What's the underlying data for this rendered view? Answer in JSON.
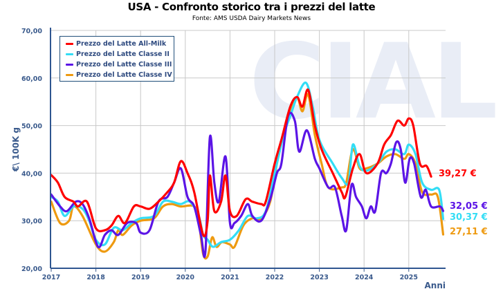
{
  "watermark": "CIAL",
  "chart_data": {
    "type": "line",
    "title": "USA - Confronto storico tra i prezzi del latte",
    "subtitle": "Fonte: AMS USDA Dairy Markets News",
    "xlabel": "Anni",
    "ylabel": "€\\ 100K g",
    "ylim": [
      20,
      70
    ],
    "xlim": [
      2017,
      2025.85
    ],
    "y_ticks": [
      "20,00",
      "30,00",
      "40,00",
      "50,00",
      "60,00",
      "70,00"
    ],
    "x_ticks": [
      "2017",
      "2018",
      "2019",
      "2020",
      "2021",
      "2022",
      "2023",
      "2024",
      "2025"
    ],
    "grid": true,
    "legend_position": "top-left",
    "series": [
      {
        "name": "Prezzo del Latte All-Milk",
        "color": "#ff0000",
        "end_label": "39,27 €",
        "points": [
          [
            2017.0,
            39.6
          ],
          [
            2017.15,
            38
          ],
          [
            2017.3,
            35
          ],
          [
            2017.5,
            34
          ],
          [
            2017.6,
            33
          ],
          [
            2017.8,
            34
          ],
          [
            2018.0,
            28.4
          ],
          [
            2018.2,
            28
          ],
          [
            2018.35,
            29
          ],
          [
            2018.5,
            31
          ],
          [
            2018.65,
            29.5
          ],
          [
            2018.85,
            33
          ],
          [
            2019.0,
            33
          ],
          [
            2019.2,
            32.5
          ],
          [
            2019.4,
            34
          ],
          [
            2019.6,
            36
          ],
          [
            2019.75,
            38
          ],
          [
            2019.9,
            42.5
          ],
          [
            2020.05,
            40
          ],
          [
            2020.2,
            36
          ],
          [
            2020.4,
            27
          ],
          [
            2020.5,
            30
          ],
          [
            2020.55,
            39.5
          ],
          [
            2020.65,
            32
          ],
          [
            2020.8,
            34
          ],
          [
            2020.9,
            39.5
          ],
          [
            2021.0,
            32
          ],
          [
            2021.15,
            31
          ],
          [
            2021.35,
            34.5
          ],
          [
            2021.5,
            34
          ],
          [
            2021.7,
            33.5
          ],
          [
            2021.8,
            34
          ],
          [
            2022.0,
            42
          ],
          [
            2022.15,
            47
          ],
          [
            2022.35,
            54
          ],
          [
            2022.5,
            56
          ],
          [
            2022.62,
            54
          ],
          [
            2022.75,
            57.5
          ],
          [
            2022.9,
            50
          ],
          [
            2023.05,
            45
          ],
          [
            2023.3,
            40
          ],
          [
            2023.5,
            36
          ],
          [
            2023.58,
            35
          ],
          [
            2023.75,
            41
          ],
          [
            2023.9,
            44
          ],
          [
            2024.05,
            40
          ],
          [
            2024.3,
            42
          ],
          [
            2024.45,
            46
          ],
          [
            2024.6,
            48
          ],
          [
            2024.75,
            51
          ],
          [
            2024.9,
            50
          ],
          [
            2025.0,
            51.5
          ],
          [
            2025.1,
            50
          ],
          [
            2025.25,
            42
          ],
          [
            2025.4,
            41.5
          ],
          [
            2025.5,
            39.27
          ]
        ]
      },
      {
        "name": "Prezzo del Latte Classe II",
        "color": "#33ddf5",
        "end_label": "30,37 €",
        "points": [
          [
            2017.0,
            35
          ],
          [
            2017.15,
            34
          ],
          [
            2017.3,
            31
          ],
          [
            2017.5,
            33
          ],
          [
            2017.7,
            32.5
          ],
          [
            2017.85,
            30
          ],
          [
            2018.0,
            26
          ],
          [
            2018.2,
            25
          ],
          [
            2018.4,
            28.5
          ],
          [
            2018.6,
            28
          ],
          [
            2018.8,
            29.5
          ],
          [
            2019.0,
            30.5
          ],
          [
            2019.3,
            31
          ],
          [
            2019.5,
            34
          ],
          [
            2019.7,
            34
          ],
          [
            2019.9,
            33.5
          ],
          [
            2020.1,
            34
          ],
          [
            2020.3,
            31
          ],
          [
            2020.4,
            27
          ],
          [
            2020.5,
            26
          ],
          [
            2020.62,
            24.5
          ],
          [
            2020.8,
            25.5
          ],
          [
            2021.0,
            26
          ],
          [
            2021.2,
            28
          ],
          [
            2021.4,
            31
          ],
          [
            2021.6,
            30.5
          ],
          [
            2021.8,
            32
          ],
          [
            2022.0,
            40
          ],
          [
            2022.2,
            48
          ],
          [
            2022.35,
            52
          ],
          [
            2022.5,
            56
          ],
          [
            2022.7,
            59
          ],
          [
            2022.85,
            54
          ],
          [
            2023.0,
            47
          ],
          [
            2023.3,
            42
          ],
          [
            2023.5,
            39
          ],
          [
            2023.65,
            38
          ],
          [
            2023.75,
            46
          ],
          [
            2023.9,
            41.5
          ],
          [
            2024.05,
            40.5
          ],
          [
            2024.3,
            42
          ],
          [
            2024.5,
            44.5
          ],
          [
            2024.7,
            45
          ],
          [
            2024.9,
            44
          ],
          [
            2025.0,
            46
          ],
          [
            2025.15,
            44
          ],
          [
            2025.3,
            38
          ],
          [
            2025.5,
            36.5
          ],
          [
            2025.68,
            36.5
          ],
          [
            2025.77,
            30.37
          ]
        ]
      },
      {
        "name": "Prezzo del Latte Classe III",
        "color": "#5b14e6",
        "end_label": "32,05 €",
        "points": [
          [
            2017.0,
            35.5
          ],
          [
            2017.2,
            33
          ],
          [
            2017.35,
            32
          ],
          [
            2017.55,
            34
          ],
          [
            2017.7,
            33.5
          ],
          [
            2017.85,
            30.5
          ],
          [
            2018.05,
            24.5
          ],
          [
            2018.2,
            27
          ],
          [
            2018.35,
            28
          ],
          [
            2018.5,
            27
          ],
          [
            2018.7,
            29.5
          ],
          [
            2018.9,
            29.5
          ],
          [
            2019.0,
            27.5
          ],
          [
            2019.2,
            28
          ],
          [
            2019.4,
            34
          ],
          [
            2019.6,
            35
          ],
          [
            2019.75,
            38
          ],
          [
            2019.9,
            41
          ],
          [
            2020.05,
            35
          ],
          [
            2020.2,
            33
          ],
          [
            2020.35,
            27
          ],
          [
            2020.45,
            23.5
          ],
          [
            2020.55,
            47.5
          ],
          [
            2020.65,
            38
          ],
          [
            2020.75,
            34
          ],
          [
            2020.9,
            43.5
          ],
          [
            2021.0,
            29.5
          ],
          [
            2021.1,
            29.5
          ],
          [
            2021.25,
            31
          ],
          [
            2021.4,
            33.5
          ],
          [
            2021.5,
            31
          ],
          [
            2021.7,
            30
          ],
          [
            2021.9,
            34.5
          ],
          [
            2022.05,
            40
          ],
          [
            2022.15,
            42
          ],
          [
            2022.3,
            52
          ],
          [
            2022.45,
            51
          ],
          [
            2022.55,
            44.5
          ],
          [
            2022.72,
            49
          ],
          [
            2022.9,
            43
          ],
          [
            2023.0,
            41
          ],
          [
            2023.2,
            37
          ],
          [
            2023.35,
            37
          ],
          [
            2023.5,
            31
          ],
          [
            2023.6,
            28
          ],
          [
            2023.72,
            37.5
          ],
          [
            2023.82,
            35
          ],
          [
            2023.95,
            33
          ],
          [
            2024.05,
            30.5
          ],
          [
            2024.15,
            33
          ],
          [
            2024.25,
            32
          ],
          [
            2024.38,
            40
          ],
          [
            2024.5,
            40
          ],
          [
            2024.6,
            42
          ],
          [
            2024.72,
            46.5
          ],
          [
            2024.82,
            45
          ],
          [
            2024.92,
            38
          ],
          [
            2025.02,
            43
          ],
          [
            2025.12,
            42
          ],
          [
            2025.27,
            35
          ],
          [
            2025.38,
            36.5
          ],
          [
            2025.5,
            33
          ],
          [
            2025.7,
            33
          ],
          [
            2025.77,
            32.05
          ]
        ]
      },
      {
        "name": "Prezzo del Latte Classe IV",
        "color": "#ee9a10",
        "end_label": "27,11 €",
        "points": [
          [
            2017.0,
            34
          ],
          [
            2017.2,
            29.5
          ],
          [
            2017.4,
            30
          ],
          [
            2017.5,
            33
          ],
          [
            2017.7,
            31
          ],
          [
            2018.0,
            25
          ],
          [
            2018.2,
            23.5
          ],
          [
            2018.4,
            25.5
          ],
          [
            2018.5,
            28
          ],
          [
            2018.6,
            27
          ],
          [
            2018.8,
            29
          ],
          [
            2019.0,
            30
          ],
          [
            2019.3,
            30.5
          ],
          [
            2019.5,
            33
          ],
          [
            2019.7,
            33.5
          ],
          [
            2019.9,
            33
          ],
          [
            2020.2,
            33
          ],
          [
            2020.3,
            30
          ],
          [
            2020.4,
            23
          ],
          [
            2020.5,
            22.5
          ],
          [
            2020.6,
            26.5
          ],
          [
            2020.7,
            24.5
          ],
          [
            2020.82,
            25.5
          ],
          [
            2021.0,
            25
          ],
          [
            2021.1,
            24.5
          ],
          [
            2021.3,
            29
          ],
          [
            2021.5,
            30.5
          ],
          [
            2021.7,
            30.5
          ],
          [
            2021.9,
            34
          ],
          [
            2022.05,
            42
          ],
          [
            2022.2,
            48
          ],
          [
            2022.35,
            53
          ],
          [
            2022.5,
            56
          ],
          [
            2022.62,
            53
          ],
          [
            2022.75,
            56.5
          ],
          [
            2022.9,
            48
          ],
          [
            2023.05,
            42
          ],
          [
            2023.2,
            37
          ],
          [
            2023.5,
            37
          ],
          [
            2023.6,
            38
          ],
          [
            2023.75,
            45
          ],
          [
            2023.9,
            41
          ],
          [
            2024.05,
            41
          ],
          [
            2024.3,
            42
          ],
          [
            2024.5,
            43.5
          ],
          [
            2024.7,
            44
          ],
          [
            2024.9,
            43
          ],
          [
            2025.0,
            44
          ],
          [
            2025.15,
            42
          ],
          [
            2025.3,
            36
          ],
          [
            2025.5,
            35.5
          ],
          [
            2025.65,
            35
          ],
          [
            2025.77,
            27.11
          ]
        ]
      }
    ]
  }
}
